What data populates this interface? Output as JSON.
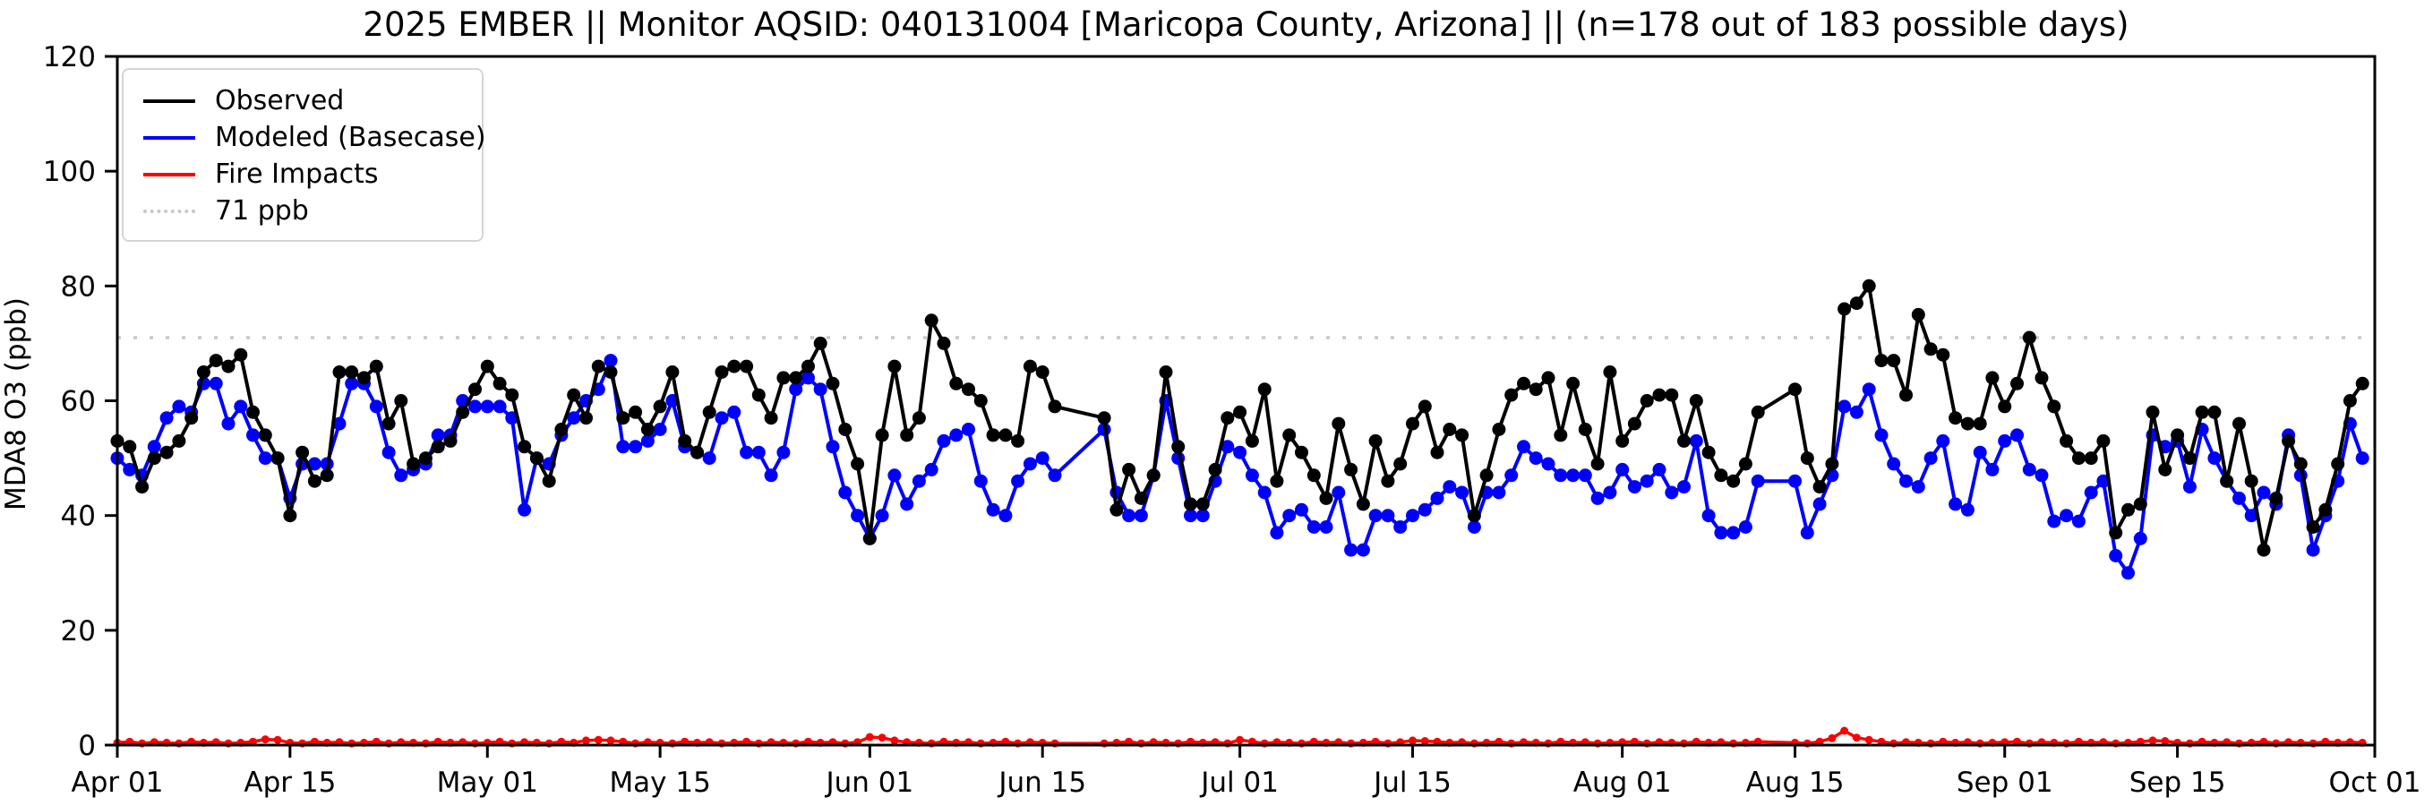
{
  "title": "2025 EMBER || Monitor AQSID: 040131004 [Maricopa County, Arizona] || (n=178 out of 183 possible days)",
  "y_axis": {
    "label": "MDA8 O3 (ppb)",
    "ticks": [
      0,
      20,
      40,
      60,
      80,
      100,
      120
    ],
    "ylim": [
      0,
      120
    ]
  },
  "x_axis": {
    "ticks": [
      {
        "label": "Apr 01",
        "day": 0
      },
      {
        "label": "Apr 15",
        "day": 14
      },
      {
        "label": "May 01",
        "day": 30
      },
      {
        "label": "May 15",
        "day": 44
      },
      {
        "label": "Jun 01",
        "day": 61
      },
      {
        "label": "Jun 15",
        "day": 75
      },
      {
        "label": "Jul 01",
        "day": 91
      },
      {
        "label": "Jul 15",
        "day": 105
      },
      {
        "label": "Aug 01",
        "day": 122
      },
      {
        "label": "Aug 15",
        "day": 136
      },
      {
        "label": "Sep 01",
        "day": 153
      },
      {
        "label": "Sep 15",
        "day": 167
      },
      {
        "label": "Oct 01",
        "day": 183
      }
    ],
    "span_days": 183
  },
  "legend": {
    "items": [
      {
        "label": "Observed",
        "style": "ls-black"
      },
      {
        "label": "Modeled (Basecase)",
        "style": "ls-blue"
      },
      {
        "label": "Fire Impacts",
        "style": "ls-red"
      },
      {
        "label": "71 ppb",
        "style": "ls-dotted"
      }
    ]
  },
  "chart_data": {
    "type": "line",
    "title": "2025 EMBER || Monitor AQSID: 040131004 [Maricopa County, Arizona] || (n=178 out of 183 possible days)",
    "xlabel": "",
    "ylabel": "MDA8 O3 (ppb)",
    "x_start_label": "Apr 01",
    "x_end_label": "Oct 01",
    "n_possible_days": 183,
    "n_observed_days": 178,
    "missing_day_indices": [
      77,
      78,
      79,
      134,
      135
    ],
    "threshold": {
      "label": "71 ppb",
      "value": 71,
      "color": "#c8c8c8"
    },
    "ylim": [
      0,
      120
    ],
    "grid": false,
    "legend_position": "upper left",
    "series": [
      {
        "name": "Observed",
        "color": "#000000",
        "marker": "circle",
        "values": [
          53,
          52,
          45,
          50,
          51,
          53,
          57,
          65,
          67,
          66,
          68,
          58,
          54,
          50,
          40,
          51,
          46,
          47,
          65,
          65,
          64,
          66,
          56,
          60,
          49,
          50,
          52,
          53,
          58,
          62,
          66,
          63,
          61,
          52,
          50,
          46,
          55,
          61,
          57,
          66,
          65,
          57,
          58,
          55,
          59,
          65,
          53,
          51,
          58,
          65,
          66,
          66,
          61,
          57,
          64,
          64,
          66,
          70,
          63,
          55,
          49,
          36,
          54,
          66,
          54,
          57,
          74,
          70,
          63,
          62,
          60,
          54,
          54,
          53,
          66,
          65,
          59,
          null,
          null,
          null,
          57,
          41,
          48,
          43,
          47,
          65,
          52,
          42,
          42,
          48,
          57,
          58,
          53,
          62,
          46,
          54,
          51,
          47,
          43,
          56,
          48,
          42,
          53,
          46,
          49,
          56,
          59,
          51,
          55,
          54,
          40,
          47,
          55,
          61,
          63,
          62,
          64,
          54,
          63,
          55,
          49,
          65,
          53,
          56,
          60,
          61,
          61,
          53,
          60,
          51,
          47,
          46,
          49,
          58,
          null,
          null,
          62,
          50,
          45,
          49,
          76,
          77,
          80,
          67,
          67,
          61,
          75,
          69,
          68,
          57,
          56,
          56,
          64,
          59,
          63,
          71,
          64,
          59,
          53,
          50,
          50,
          53,
          37,
          41,
          42,
          58,
          48,
          54,
          50,
          58,
          58,
          46,
          56,
          46,
          34,
          43,
          53,
          49,
          38,
          41,
          49,
          60,
          63
        ]
      },
      {
        "name": "Modeled (Basecase)",
        "color": "#0000ff",
        "marker": "circle",
        "values": [
          50,
          48,
          47,
          52,
          57,
          59,
          58,
          63,
          63,
          56,
          59,
          54,
          50,
          50,
          43,
          49,
          49,
          49,
          56,
          63,
          63,
          59,
          51,
          47,
          48,
          49,
          54,
          54,
          60,
          59,
          59,
          59,
          57,
          41,
          50,
          49,
          54,
          57,
          60,
          62,
          67,
          52,
          52,
          53,
          55,
          60,
          52,
          51,
          50,
          57,
          58,
          51,
          51,
          47,
          51,
          62,
          64,
          62,
          52,
          44,
          40,
          36,
          40,
          47,
          42,
          46,
          48,
          53,
          54,
          55,
          46,
          41,
          40,
          46,
          49,
          50,
          47,
          null,
          null,
          null,
          55,
          44,
          40,
          40,
          47,
          60,
          50,
          40,
          40,
          46,
          52,
          51,
          47,
          44,
          37,
          40,
          41,
          38,
          38,
          44,
          34,
          34,
          40,
          40,
          38,
          40,
          41,
          43,
          45,
          44,
          38,
          44,
          44,
          47,
          52,
          50,
          49,
          47,
          47,
          47,
          43,
          44,
          48,
          45,
          46,
          48,
          44,
          45,
          53,
          40,
          37,
          37,
          38,
          46,
          null,
          null,
          46,
          37,
          42,
          47,
          59,
          58,
          62,
          54,
          49,
          46,
          45,
          50,
          53,
          42,
          41,
          51,
          48,
          53,
          54,
          48,
          47,
          39,
          40,
          39,
          44,
          46,
          33,
          30,
          36,
          54,
          52,
          53,
          45,
          55,
          50,
          46,
          43,
          40,
          44,
          42,
          54,
          47,
          34,
          40,
          46,
          56,
          50
        ]
      },
      {
        "name": "Fire Impacts",
        "color": "#ff0000",
        "marker": "circle",
        "values": [
          0.4,
          0.6,
          0.3,
          0.5,
          0.4,
          0.3,
          0.6,
          0.4,
          0.5,
          0.3,
          0.4,
          0.6,
          1.0,
          0.9,
          0.4,
          0.3,
          0.6,
          0.4,
          0.5,
          0.3,
          0.4,
          0.6,
          0.3,
          0.5,
          0.4,
          0.3,
          0.6,
          0.4,
          0.5,
          0.3,
          0.4,
          0.6,
          0.3,
          0.5,
          0.4,
          0.3,
          0.6,
          0.4,
          0.8,
          0.9,
          0.8,
          0.6,
          0.3,
          0.5,
          0.4,
          0.3,
          0.6,
          0.4,
          0.5,
          0.3,
          0.4,
          0.6,
          0.3,
          0.5,
          0.4,
          0.3,
          0.6,
          0.4,
          0.5,
          0.3,
          0.5,
          1.4,
          1.3,
          0.8,
          0.5,
          0.4,
          0.3,
          0.6,
          0.4,
          0.5,
          0.3,
          0.4,
          0.6,
          0.3,
          0.5,
          0.4,
          0.3,
          null,
          null,
          null,
          0.3,
          0.4,
          0.6,
          0.3,
          0.5,
          0.4,
          0.3,
          0.6,
          0.4,
          0.5,
          0.3,
          0.9,
          0.6,
          0.3,
          0.5,
          0.4,
          0.3,
          0.6,
          0.4,
          0.5,
          0.3,
          0.4,
          0.6,
          0.3,
          0.5,
          0.8,
          0.7,
          0.6,
          0.4,
          0.5,
          0.3,
          0.4,
          0.6,
          0.3,
          0.5,
          0.4,
          0.3,
          0.6,
          0.4,
          0.5,
          0.3,
          0.4,
          0.5,
          0.6,
          0.3,
          0.5,
          0.4,
          0.3,
          0.6,
          0.4,
          0.5,
          0.3,
          0.4,
          0.6,
          null,
          null,
          0.4,
          0.3,
          0.6,
          1.2,
          2.5,
          1.3,
          0.9,
          0.6,
          0.3,
          0.5,
          0.4,
          0.3,
          0.6,
          0.4,
          0.5,
          0.3,
          0.4,
          0.5,
          0.6,
          0.3,
          0.5,
          0.4,
          0.3,
          0.6,
          0.4,
          0.5,
          0.3,
          0.4,
          0.6,
          0.8,
          0.7,
          0.4,
          0.3,
          0.6,
          0.4,
          0.5,
          0.3,
          0.4,
          0.6,
          0.3,
          0.5,
          0.4,
          0.3,
          0.6,
          0.4,
          0.5,
          0.4
        ]
      }
    ]
  },
  "colors": {
    "observed": "#000000",
    "modeled": "#0000ff",
    "fire": "#ff0000",
    "threshold_line": "#c8c8c8",
    "axis": "#000000",
    "background": "#ffffff"
  }
}
